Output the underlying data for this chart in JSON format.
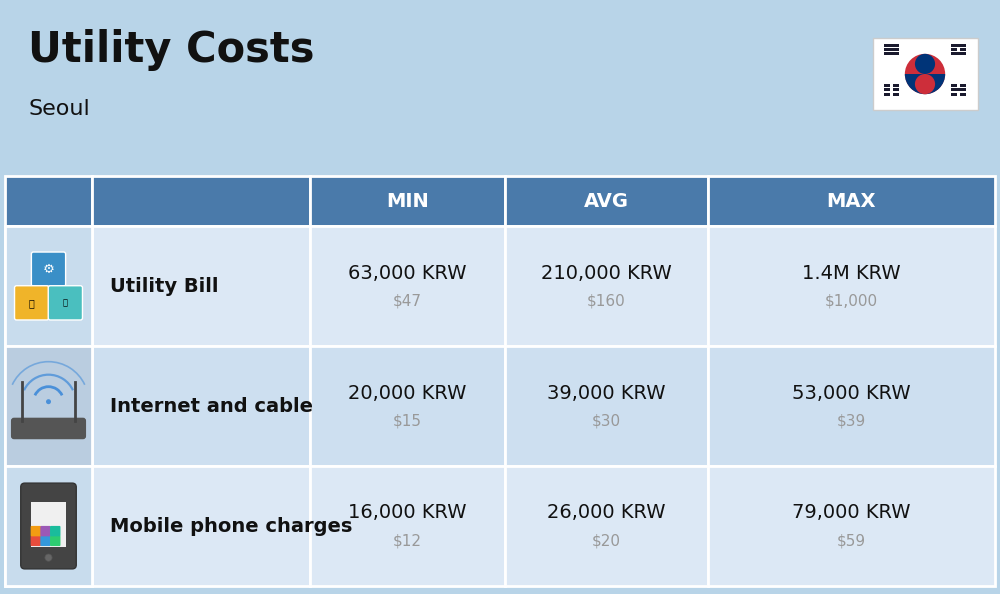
{
  "title": "Utility Costs",
  "subtitle": "Seoul",
  "bg_color": "#b8d4e8",
  "header_bg_color": "#4a7aaa",
  "header_text_color": "#ffffff",
  "row_bg_color_even": "#dce8f5",
  "row_bg_color_odd": "#cddff0",
  "icon_col_bg_even": "#c8dced",
  "icon_col_bg_odd": "#bacde0",
  "border_color": "#ffffff",
  "col_headers": [
    "MIN",
    "AVG",
    "MAX"
  ],
  "rows": [
    {
      "label": "Utility Bill",
      "min_krw": "63,000 KRW",
      "min_usd": "$47",
      "avg_krw": "210,000 KRW",
      "avg_usd": "$160",
      "max_krw": "1.4M KRW",
      "max_usd": "$1,000",
      "icon": "utility"
    },
    {
      "label": "Internet and cable",
      "min_krw": "20,000 KRW",
      "min_usd": "$15",
      "avg_krw": "39,000 KRW",
      "avg_usd": "$30",
      "max_krw": "53,000 KRW",
      "max_usd": "$39",
      "icon": "internet"
    },
    {
      "label": "Mobile phone charges",
      "min_krw": "16,000 KRW",
      "min_usd": "$12",
      "avg_krw": "26,000 KRW",
      "avg_usd": "$20",
      "max_krw": "79,000 KRW",
      "max_usd": "$59",
      "icon": "mobile"
    }
  ],
  "krw_fontsize": 14,
  "usd_fontsize": 11,
  "label_fontsize": 14,
  "header_fontsize": 14,
  "title_fontsize": 30,
  "subtitle_fontsize": 16,
  "usd_color": "#999999",
  "text_color": "#111111"
}
